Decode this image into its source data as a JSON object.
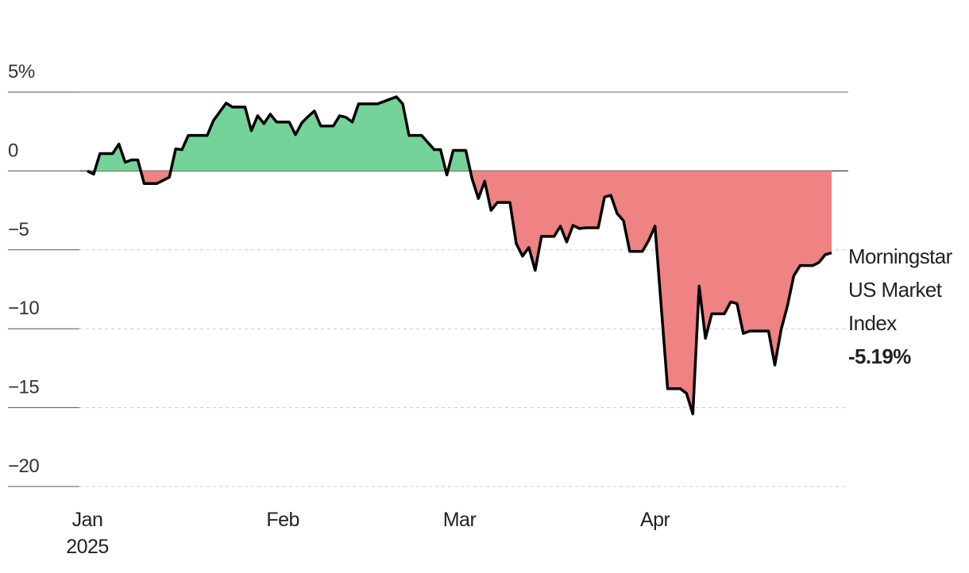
{
  "chart_data": {
    "type": "area",
    "categories": [
      "Jan\n2025",
      null,
      null,
      null,
      null,
      null,
      null,
      null,
      null,
      null,
      null,
      null,
      null,
      null,
      null,
      null,
      null,
      null,
      null,
      null,
      null,
      null,
      null,
      null,
      null,
      null,
      null,
      null,
      null,
      null,
      null,
      "Feb",
      null,
      null,
      null,
      null,
      null,
      null,
      null,
      null,
      null,
      null,
      null,
      null,
      null,
      null,
      null,
      null,
      null,
      null,
      null,
      null,
      null,
      null,
      null,
      null,
      null,
      null,
      null,
      "Mar",
      null,
      null,
      null,
      null,
      null,
      null,
      null,
      null,
      null,
      null,
      null,
      null,
      null,
      null,
      null,
      null,
      null,
      null,
      null,
      null,
      null,
      null,
      null,
      null,
      null,
      null,
      null,
      null,
      null,
      null,
      "Apr",
      null,
      null,
      null,
      null,
      null,
      null,
      null,
      null,
      null,
      null,
      null,
      null,
      null,
      null,
      null,
      null,
      null,
      null,
      null,
      null,
      null,
      null,
      null,
      null,
      null,
      null,
      null,
      null
    ],
    "series": [
      {
        "name": "Morningstar US Market Index",
        "color": "#000000",
        "values": [
          0,
          -0.2,
          1.1,
          1.1,
          1.1,
          1.7,
          0.55,
          0.7,
          0.7,
          -0.8,
          -0.8,
          -0.8,
          -0.6,
          -0.4,
          1.4,
          1.35,
          2.25,
          2.25,
          2.25,
          2.25,
          3.2,
          3.75,
          4.3,
          4.05,
          4.05,
          4.05,
          2.55,
          3.5,
          3.0,
          3.6,
          3.1,
          3.1,
          3.1,
          2.3,
          3.05,
          3.45,
          3.8,
          2.85,
          2.85,
          2.85,
          3.5,
          3.4,
          3.1,
          4.25,
          4.25,
          4.25,
          4.25,
          4.4,
          4.55,
          4.7,
          4.25,
          2.25,
          2.25,
          2.25,
          1.8,
          1.35,
          1.35,
          -0.25,
          1.3,
          1.3,
          1.3,
          -0.5,
          -1.75,
          -0.65,
          -2.5,
          -2.0,
          -2.0,
          -2.0,
          -4.6,
          -5.4,
          -4.85,
          -6.3,
          -4.15,
          -4.15,
          -4.15,
          -3.5,
          -4.5,
          -3.45,
          -3.65,
          -3.6,
          -3.6,
          -3.6,
          -1.65,
          -1.55,
          -2.7,
          -3.15,
          -5.1,
          -5.1,
          -5.1,
          -4.4,
          -3.5,
          -8.65,
          -13.8,
          -13.8,
          -13.8,
          -14.1,
          -15.4,
          -7.3,
          -10.6,
          -9.05,
          -9.05,
          -9.05,
          -8.3,
          -8.4,
          -10.3,
          -10.15,
          -10.15,
          -10.15,
          -10.15,
          -12.3,
          -10.05,
          -8.55,
          -6.65,
          -6.0,
          -6.0,
          -6.0,
          -5.8,
          -5.3,
          -5.19
        ],
        "value_labels": [
          null,
          null,
          null,
          null,
          null,
          null,
          null,
          null,
          null,
          null,
          null,
          null,
          null,
          null,
          null,
          null,
          null,
          null,
          null,
          null,
          null,
          null,
          null,
          null,
          null,
          null,
          null,
          null,
          null,
          null,
          null,
          null,
          null,
          null,
          null,
          null,
          null,
          null,
          null,
          null,
          null,
          null,
          null,
          null,
          null,
          null,
          null,
          null,
          null,
          null,
          null,
          null,
          null,
          null,
          null,
          null,
          null,
          null,
          null,
          null,
          null,
          null,
          null,
          null,
          null,
          null,
          null,
          null,
          null,
          null,
          null,
          null,
          null,
          null,
          null,
          null,
          null,
          null,
          null,
          null,
          null,
          null,
          null,
          null,
          null,
          null,
          null,
          null,
          null,
          null,
          null,
          null,
          null,
          null,
          null,
          null,
          null,
          null,
          null,
          null,
          null,
          null,
          null,
          null,
          null,
          null,
          null,
          null,
          null,
          null,
          null,
          null,
          null,
          null,
          null,
          null,
          null,
          null,
          "-5.19%"
        ]
      }
    ],
    "positive_color": "#74d398",
    "negative_color": "#ef8282",
    "ylim": [
      -20,
      5
    ],
    "yticks": [
      {
        "value": 5,
        "label": "5%"
      },
      0,
      {
        "value": -5,
        "label": "−5"
      },
      {
        "value": -10,
        "label": "−10"
      },
      {
        "value": -15,
        "label": "−15"
      },
      {
        "value": -20,
        "label": "−20"
      }
    ],
    "grid": true
  }
}
